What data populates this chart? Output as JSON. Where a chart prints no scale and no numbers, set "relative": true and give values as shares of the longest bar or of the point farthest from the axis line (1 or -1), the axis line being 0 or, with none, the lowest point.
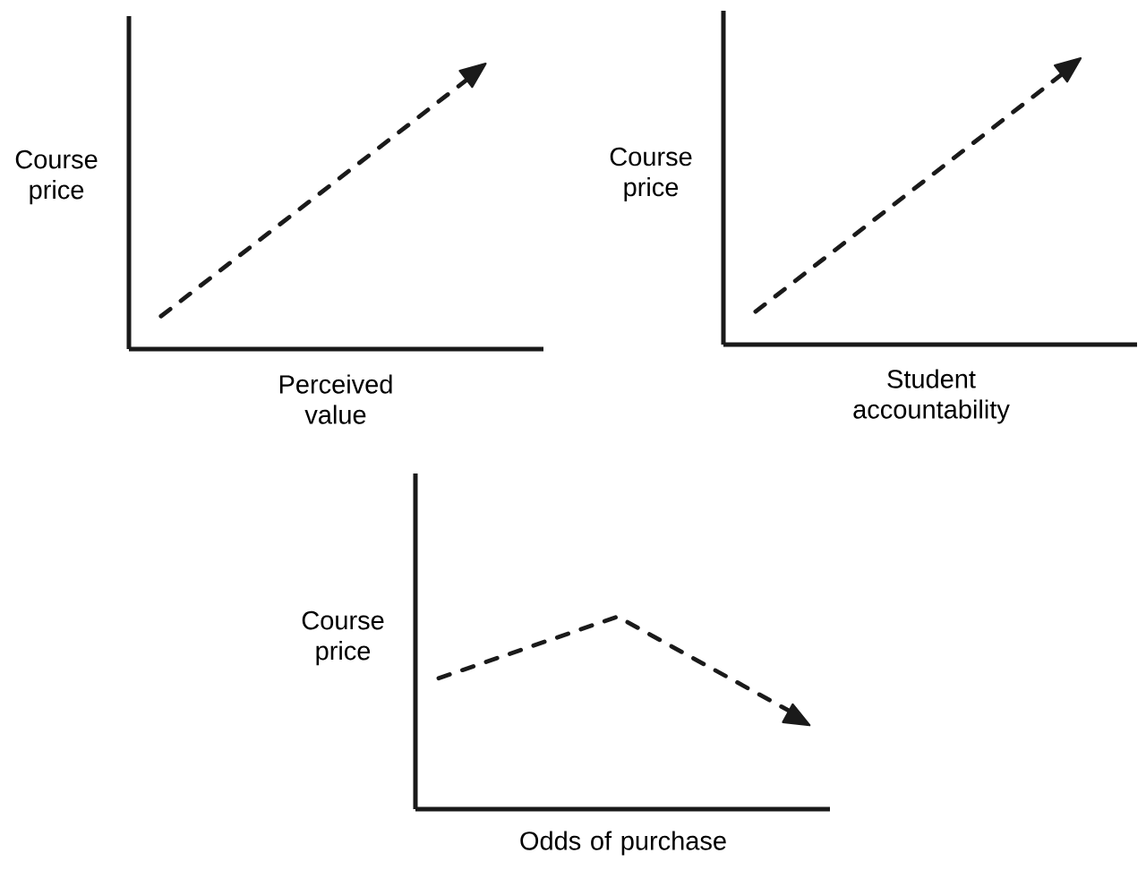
{
  "chart_data": [
    {
      "type": "line",
      "relative": true,
      "xlabel": "Perceived value",
      "ylabel": "Course price",
      "categories": [
        null,
        null
      ],
      "series": [
        {
          "color": "#1a1a1a",
          "values": [
            0.12,
            1
          ]
        }
      ],
      "line_style": "dashed"
    },
    {
      "type": "line",
      "relative": true,
      "xlabel": "Student accountability",
      "ylabel": "Course price",
      "categories": [
        null,
        null
      ],
      "series": [
        {
          "color": "#1a1a1a",
          "values": [
            0.12,
            1
          ]
        }
      ],
      "line_style": "dashed"
    },
    {
      "type": "line",
      "relative": true,
      "xlabel": "Odds of purchase",
      "ylabel": "Course price",
      "categories": [
        null,
        null,
        null
      ],
      "series": [
        {
          "color": "#1a1a1a",
          "values": [
            0.68,
            1,
            0.49
          ]
        }
      ],
      "line_style": "dashed"
    }
  ]
}
